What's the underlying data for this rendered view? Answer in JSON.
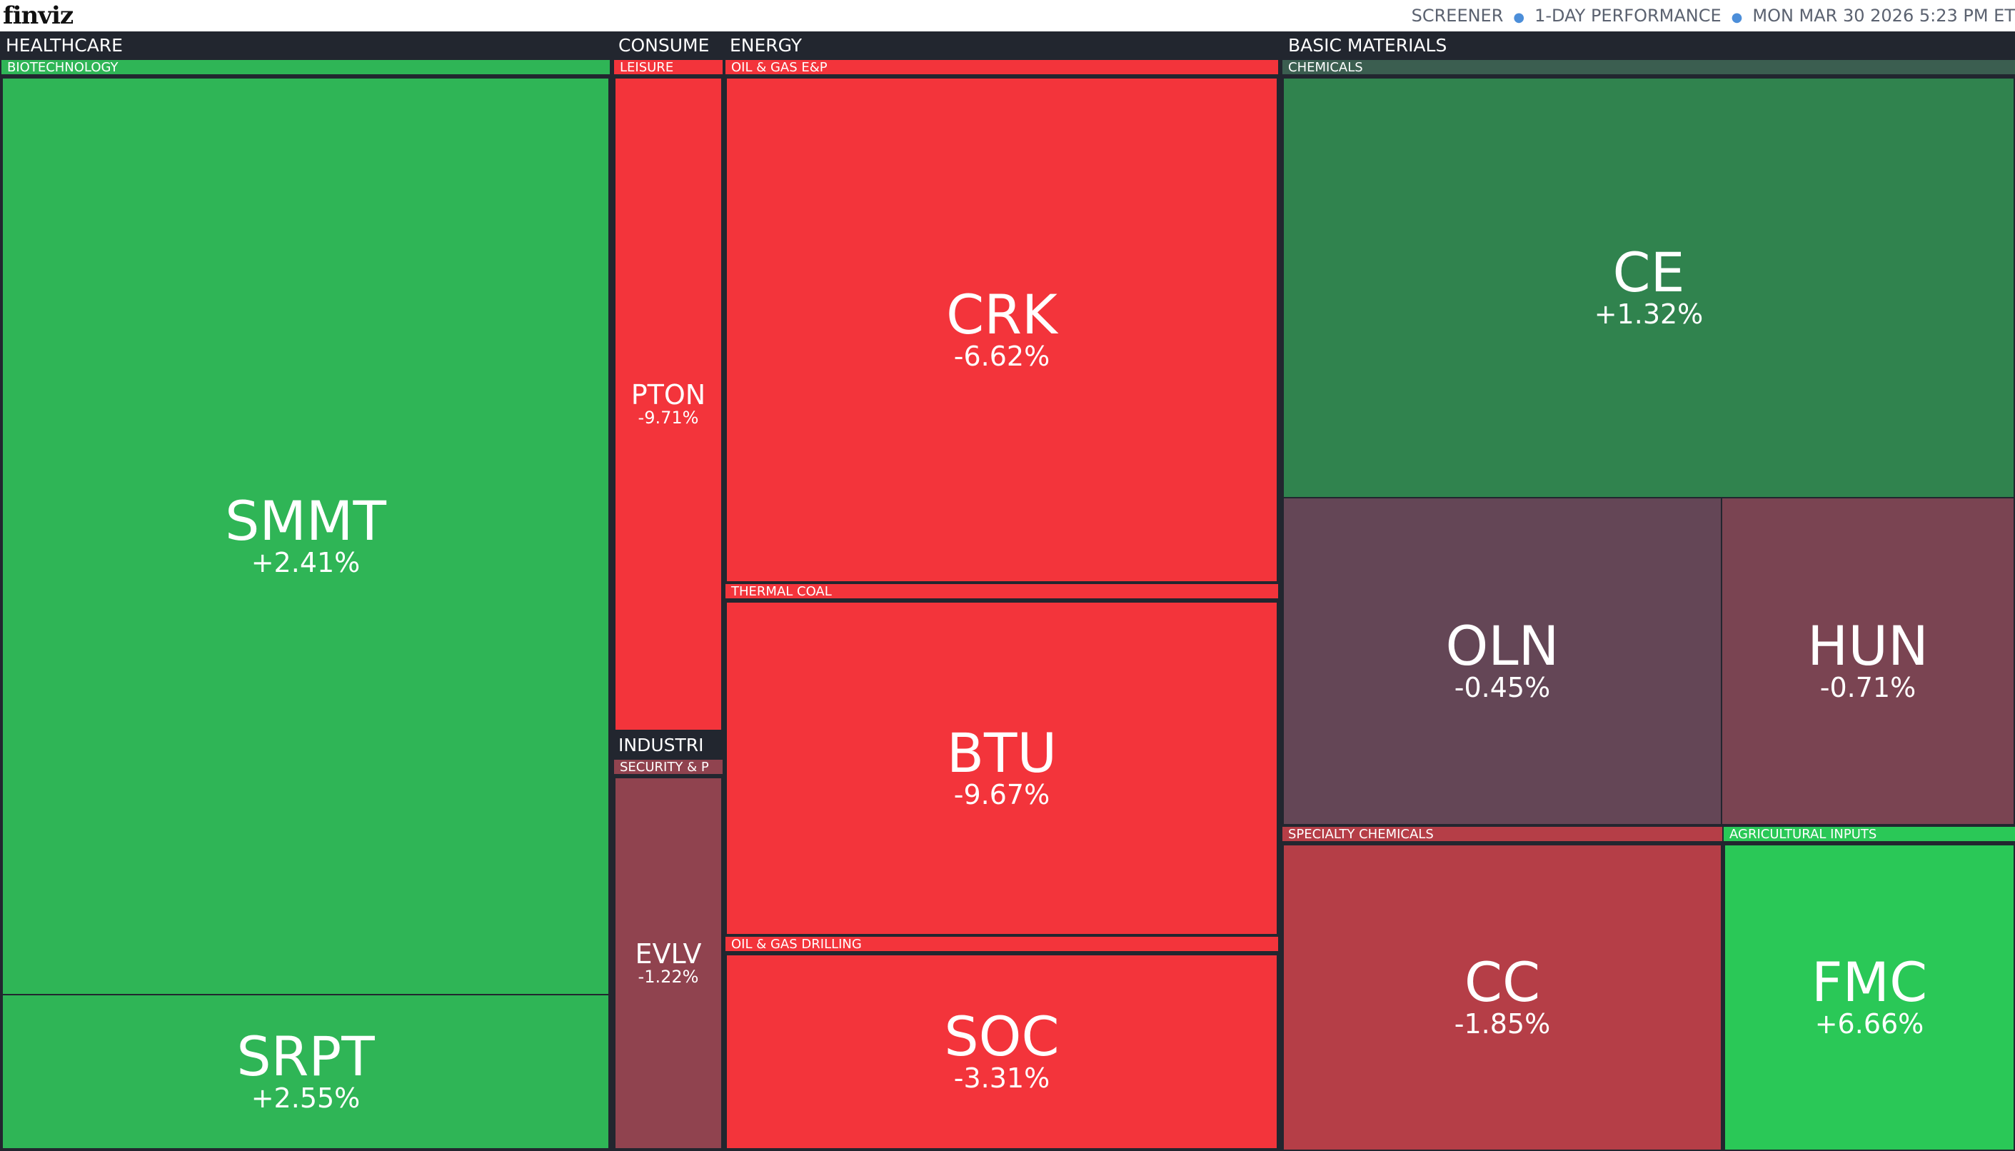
{
  "header": {
    "logo": "finviz",
    "crumb1": "SCREENER",
    "crumb2": "1-DAY PERFORMANCE",
    "timestamp": "MON MAR 30 2026 5:23 PM ET"
  },
  "colors": {
    "strong_up": "#2fb556",
    "up_bright": "#2ac857",
    "mild_up": "#30834e",
    "flat_down": "#644656",
    "mild_down": "#7a4452",
    "down": "#b53e47",
    "strong_down": "#f3343b",
    "background": "#22262f"
  },
  "sectors": {
    "healthcare": {
      "name": "HEALTHCARE"
    },
    "consumer": {
      "name": "CONSUME"
    },
    "industrials": {
      "name": "INDUSTRI"
    },
    "energy": {
      "name": "ENERGY"
    },
    "basic_materials": {
      "name": "BASIC MATERIALS"
    }
  },
  "industries": {
    "biotechnology": "BIOTECHNOLOGY",
    "leisure": "LEISURE",
    "security": "SECURITY & P",
    "oil_gas_ep": "OIL & GAS E&P",
    "thermal_coal": "THERMAL COAL",
    "oil_gas_drilling": "OIL & GAS DRILLING",
    "chemicals": "CHEMICALS",
    "specialty_chemicals": "SPECIALTY CHEMICALS",
    "agricultural_inputs": "AGRICULTURAL INPUTS"
  },
  "tiles": {
    "smmt": {
      "ticker": "SMMT",
      "change": "+2.41%",
      "change_pct": 2.41
    },
    "srpt": {
      "ticker": "SRPT",
      "change": "+2.55%",
      "change_pct": 2.55
    },
    "pton": {
      "ticker": "PTON",
      "change": "-9.71%",
      "change_pct": -9.71
    },
    "evlv": {
      "ticker": "EVLV",
      "change": "-1.22%",
      "change_pct": -1.22
    },
    "crk": {
      "ticker": "CRK",
      "change": "-6.62%",
      "change_pct": -6.62
    },
    "btu": {
      "ticker": "BTU",
      "change": "-9.67%",
      "change_pct": -9.67
    },
    "soc": {
      "ticker": "SOC",
      "change": "-3.31%",
      "change_pct": -3.31
    },
    "ce": {
      "ticker": "CE",
      "change": "+1.32%",
      "change_pct": 1.32
    },
    "oln": {
      "ticker": "OLN",
      "change": "-0.45%",
      "change_pct": -0.45
    },
    "hun": {
      "ticker": "HUN",
      "change": "-0.71%",
      "change_pct": -0.71
    },
    "cc": {
      "ticker": "CC",
      "change": "-1.85%",
      "change_pct": -1.85
    },
    "fmc": {
      "ticker": "FMC",
      "change": "+6.66%",
      "change_pct": 6.66
    }
  }
}
